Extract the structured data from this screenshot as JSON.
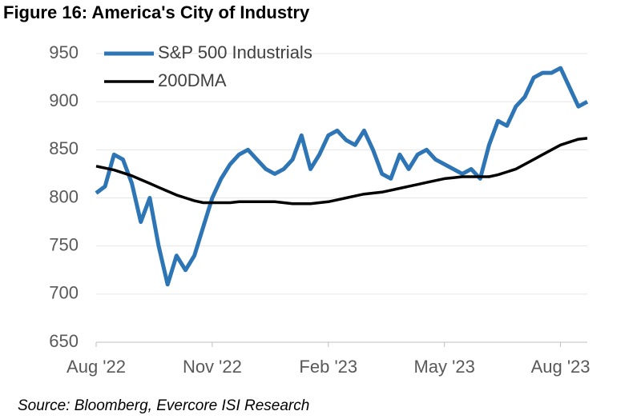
{
  "chart_data": {
    "type": "line",
    "title": "Figure 16: America's City of Industry",
    "source": "Source: Bloomberg, Evercore ISI Research",
    "categories": [
      "Aug '22",
      null,
      null,
      null,
      null,
      null,
      null,
      null,
      null,
      null,
      null,
      null,
      null,
      "Nov '22",
      null,
      null,
      null,
      null,
      null,
      null,
      null,
      null,
      null,
      null,
      null,
      null,
      "Feb '23",
      null,
      null,
      null,
      null,
      null,
      null,
      null,
      null,
      null,
      null,
      null,
      null,
      "May '23",
      null,
      null,
      null,
      null,
      null,
      null,
      null,
      null,
      null,
      null,
      null,
      null,
      "Aug '23",
      null,
      null,
      null
    ],
    "series": [
      {
        "name": "S&P 500 Industrials",
        "color": "#2e75b6",
        "values": [
          805,
          812,
          845,
          840,
          815,
          775,
          800,
          750,
          710,
          740,
          725,
          740,
          770,
          800,
          820,
          835,
          845,
          850,
          840,
          830,
          825,
          830,
          840,
          865,
          830,
          845,
          865,
          870,
          860,
          855,
          870,
          850,
          825,
          820,
          845,
          830,
          845,
          850,
          840,
          835,
          830,
          825,
          830,
          820,
          855,
          880,
          875,
          895,
          905,
          925,
          930,
          930,
          935,
          915,
          895,
          900
        ]
      },
      {
        "name": "200DMA",
        "color": "#000000",
        "values": [
          833,
          831,
          829,
          826,
          823,
          819,
          815,
          811,
          807,
          803,
          800,
          797,
          795,
          795,
          795,
          795,
          796,
          796,
          796,
          796,
          796,
          795,
          794,
          794,
          794,
          795,
          796,
          798,
          800,
          802,
          804,
          805,
          806,
          808,
          810,
          812,
          814,
          816,
          818,
          820,
          821,
          822,
          822,
          822,
          822,
          824,
          827,
          830,
          835,
          840,
          845,
          850,
          855,
          858,
          861,
          862
        ]
      }
    ],
    "ylim": [
      650,
      950
    ],
    "yticks": [
      650,
      700,
      750,
      800,
      850,
      900,
      950
    ],
    "grid": true,
    "legend": "upper-left"
  }
}
